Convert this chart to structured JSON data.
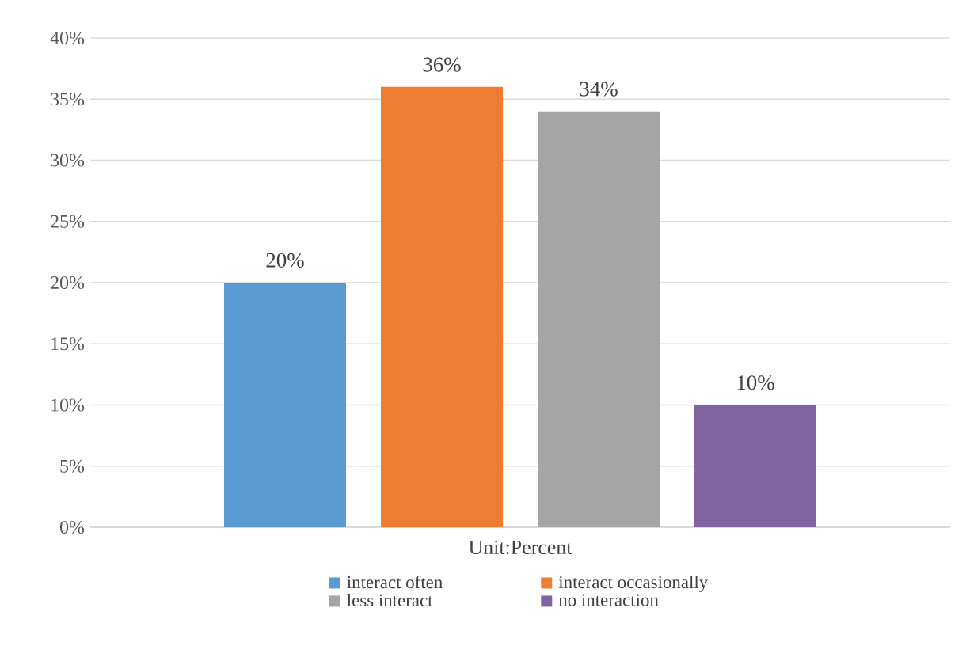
{
  "chart_data": {
    "type": "bar",
    "categories": [
      null
    ],
    "xlabel": "Unit:Percent",
    "series": [
      {
        "name": "interact often",
        "color": "#5b9bd5",
        "values": [
          20
        ],
        "value_labels": [
          "20%"
        ]
      },
      {
        "name": "interact occasionally",
        "color": "#ed7d31",
        "values": [
          36
        ],
        "value_labels": [
          "36%"
        ]
      },
      {
        "name": "less interact",
        "color": "#a5a5a5",
        "values": [
          34
        ],
        "value_labels": [
          "34%"
        ]
      },
      {
        "name": "no interaction",
        "color": "#8064a2",
        "values": [
          10
        ],
        "value_labels": [
          "10%"
        ]
      }
    ],
    "ylim": [
      0,
      40
    ],
    "yticks": [
      {
        "value": 0,
        "label": "0%"
      },
      {
        "value": 5,
        "label": "5%"
      },
      {
        "value": 10,
        "label": "10%"
      },
      {
        "value": 15,
        "label": "15%"
      },
      {
        "value": 20,
        "label": "20%"
      },
      {
        "value": 25,
        "label": "25%"
      },
      {
        "value": 30,
        "label": "30%"
      },
      {
        "value": 35,
        "label": "35%"
      },
      {
        "value": 40,
        "label": "40%"
      }
    ],
    "grid": "y",
    "legend": "bottom"
  }
}
